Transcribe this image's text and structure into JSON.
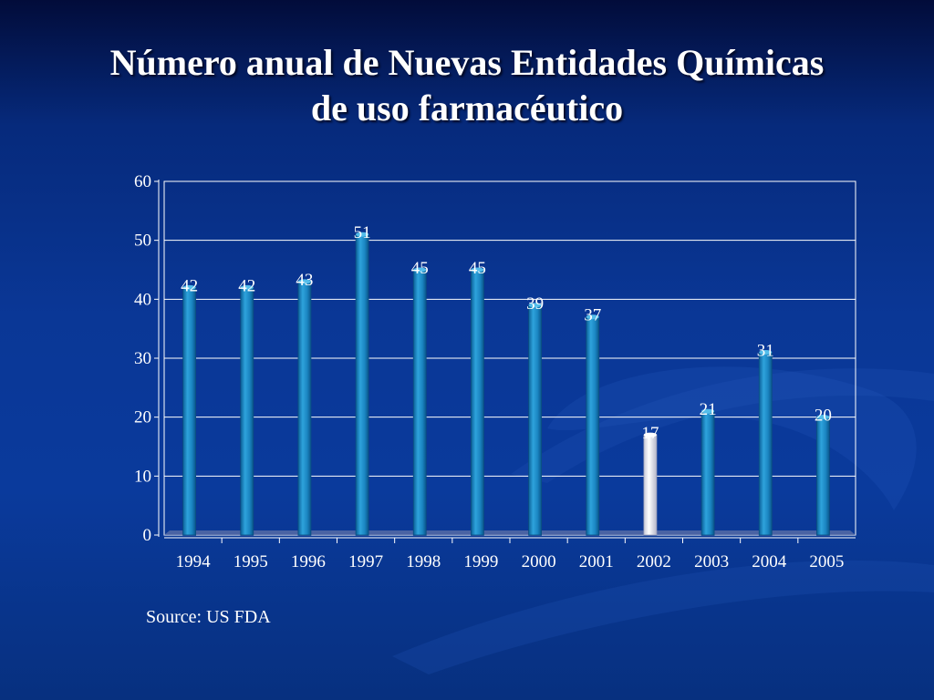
{
  "slide": {
    "title_line1": "Número anual de Nuevas Entidades Químicas",
    "title_line2": "de uso farmacéutico",
    "source": "Source: US FDA"
  },
  "colors": {
    "bar": "#1e8ec8",
    "bar_highlight": "#ffffff",
    "grid": "#ffffff",
    "text": "#ffffff"
  },
  "chart_data": {
    "type": "bar",
    "categories": [
      "1994",
      "1995",
      "1996",
      "1997",
      "1998",
      "1999",
      "2000",
      "2001",
      "2002",
      "2003",
      "2004",
      "2005"
    ],
    "values": [
      42,
      42,
      43,
      51,
      45,
      45,
      39,
      37,
      17,
      21,
      31,
      20
    ],
    "data_labels": [
      "42",
      "42",
      "43",
      "51",
      "45",
      "45",
      "39",
      "37",
      "17",
      "21",
      "31",
      "20"
    ],
    "highlight_category": "2002",
    "ylim": [
      0,
      60
    ],
    "yticks": [
      0,
      10,
      20,
      30,
      40,
      50,
      60
    ],
    "grid": true,
    "title": "",
    "xlabel": "",
    "ylabel": ""
  }
}
